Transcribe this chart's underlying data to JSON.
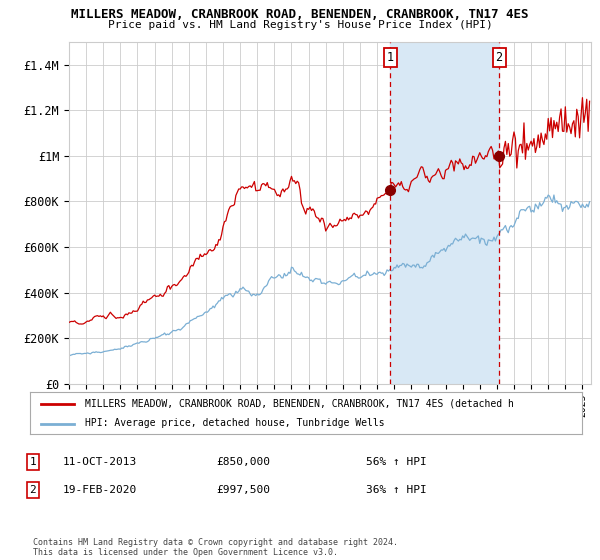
{
  "title": "MILLERS MEADOW, CRANBROOK ROAD, BENENDEN, CRANBROOK, TN17 4ES",
  "subtitle": "Price paid vs. HM Land Registry's House Price Index (HPI)",
  "ylim": [
    0,
    1500000
  ],
  "yticks": [
    0,
    200000,
    400000,
    600000,
    800000,
    1000000,
    1200000,
    1400000
  ],
  "ytick_labels": [
    "£0",
    "£200K",
    "£400K",
    "£600K",
    "£800K",
    "£1M",
    "£1.2M",
    "£1.4M"
  ],
  "red_line_color": "#cc0000",
  "blue_line_color": "#7bafd4",
  "grid_color": "#cccccc",
  "bg_color": "#ffffff",
  "shaded_color": "#d8e8f5",
  "purchase1_year": 2013.78,
  "purchase1_value": 850000,
  "purchase2_year": 2020.13,
  "purchase2_value": 997500,
  "legend_red_label": "MILLERS MEADOW, CRANBROOK ROAD, BENENDEN, CRANBROOK, TN17 4ES (detached h",
  "legend_blue_label": "HPI: Average price, detached house, Tunbridge Wells",
  "annotation1_date": "11-OCT-2013",
  "annotation1_price": "£850,000",
  "annotation1_hpi": "56% ↑ HPI",
  "annotation2_date": "19-FEB-2020",
  "annotation2_price": "£997,500",
  "annotation2_hpi": "36% ↑ HPI",
  "footer": "Contains HM Land Registry data © Crown copyright and database right 2024.\nThis data is licensed under the Open Government Licence v3.0."
}
